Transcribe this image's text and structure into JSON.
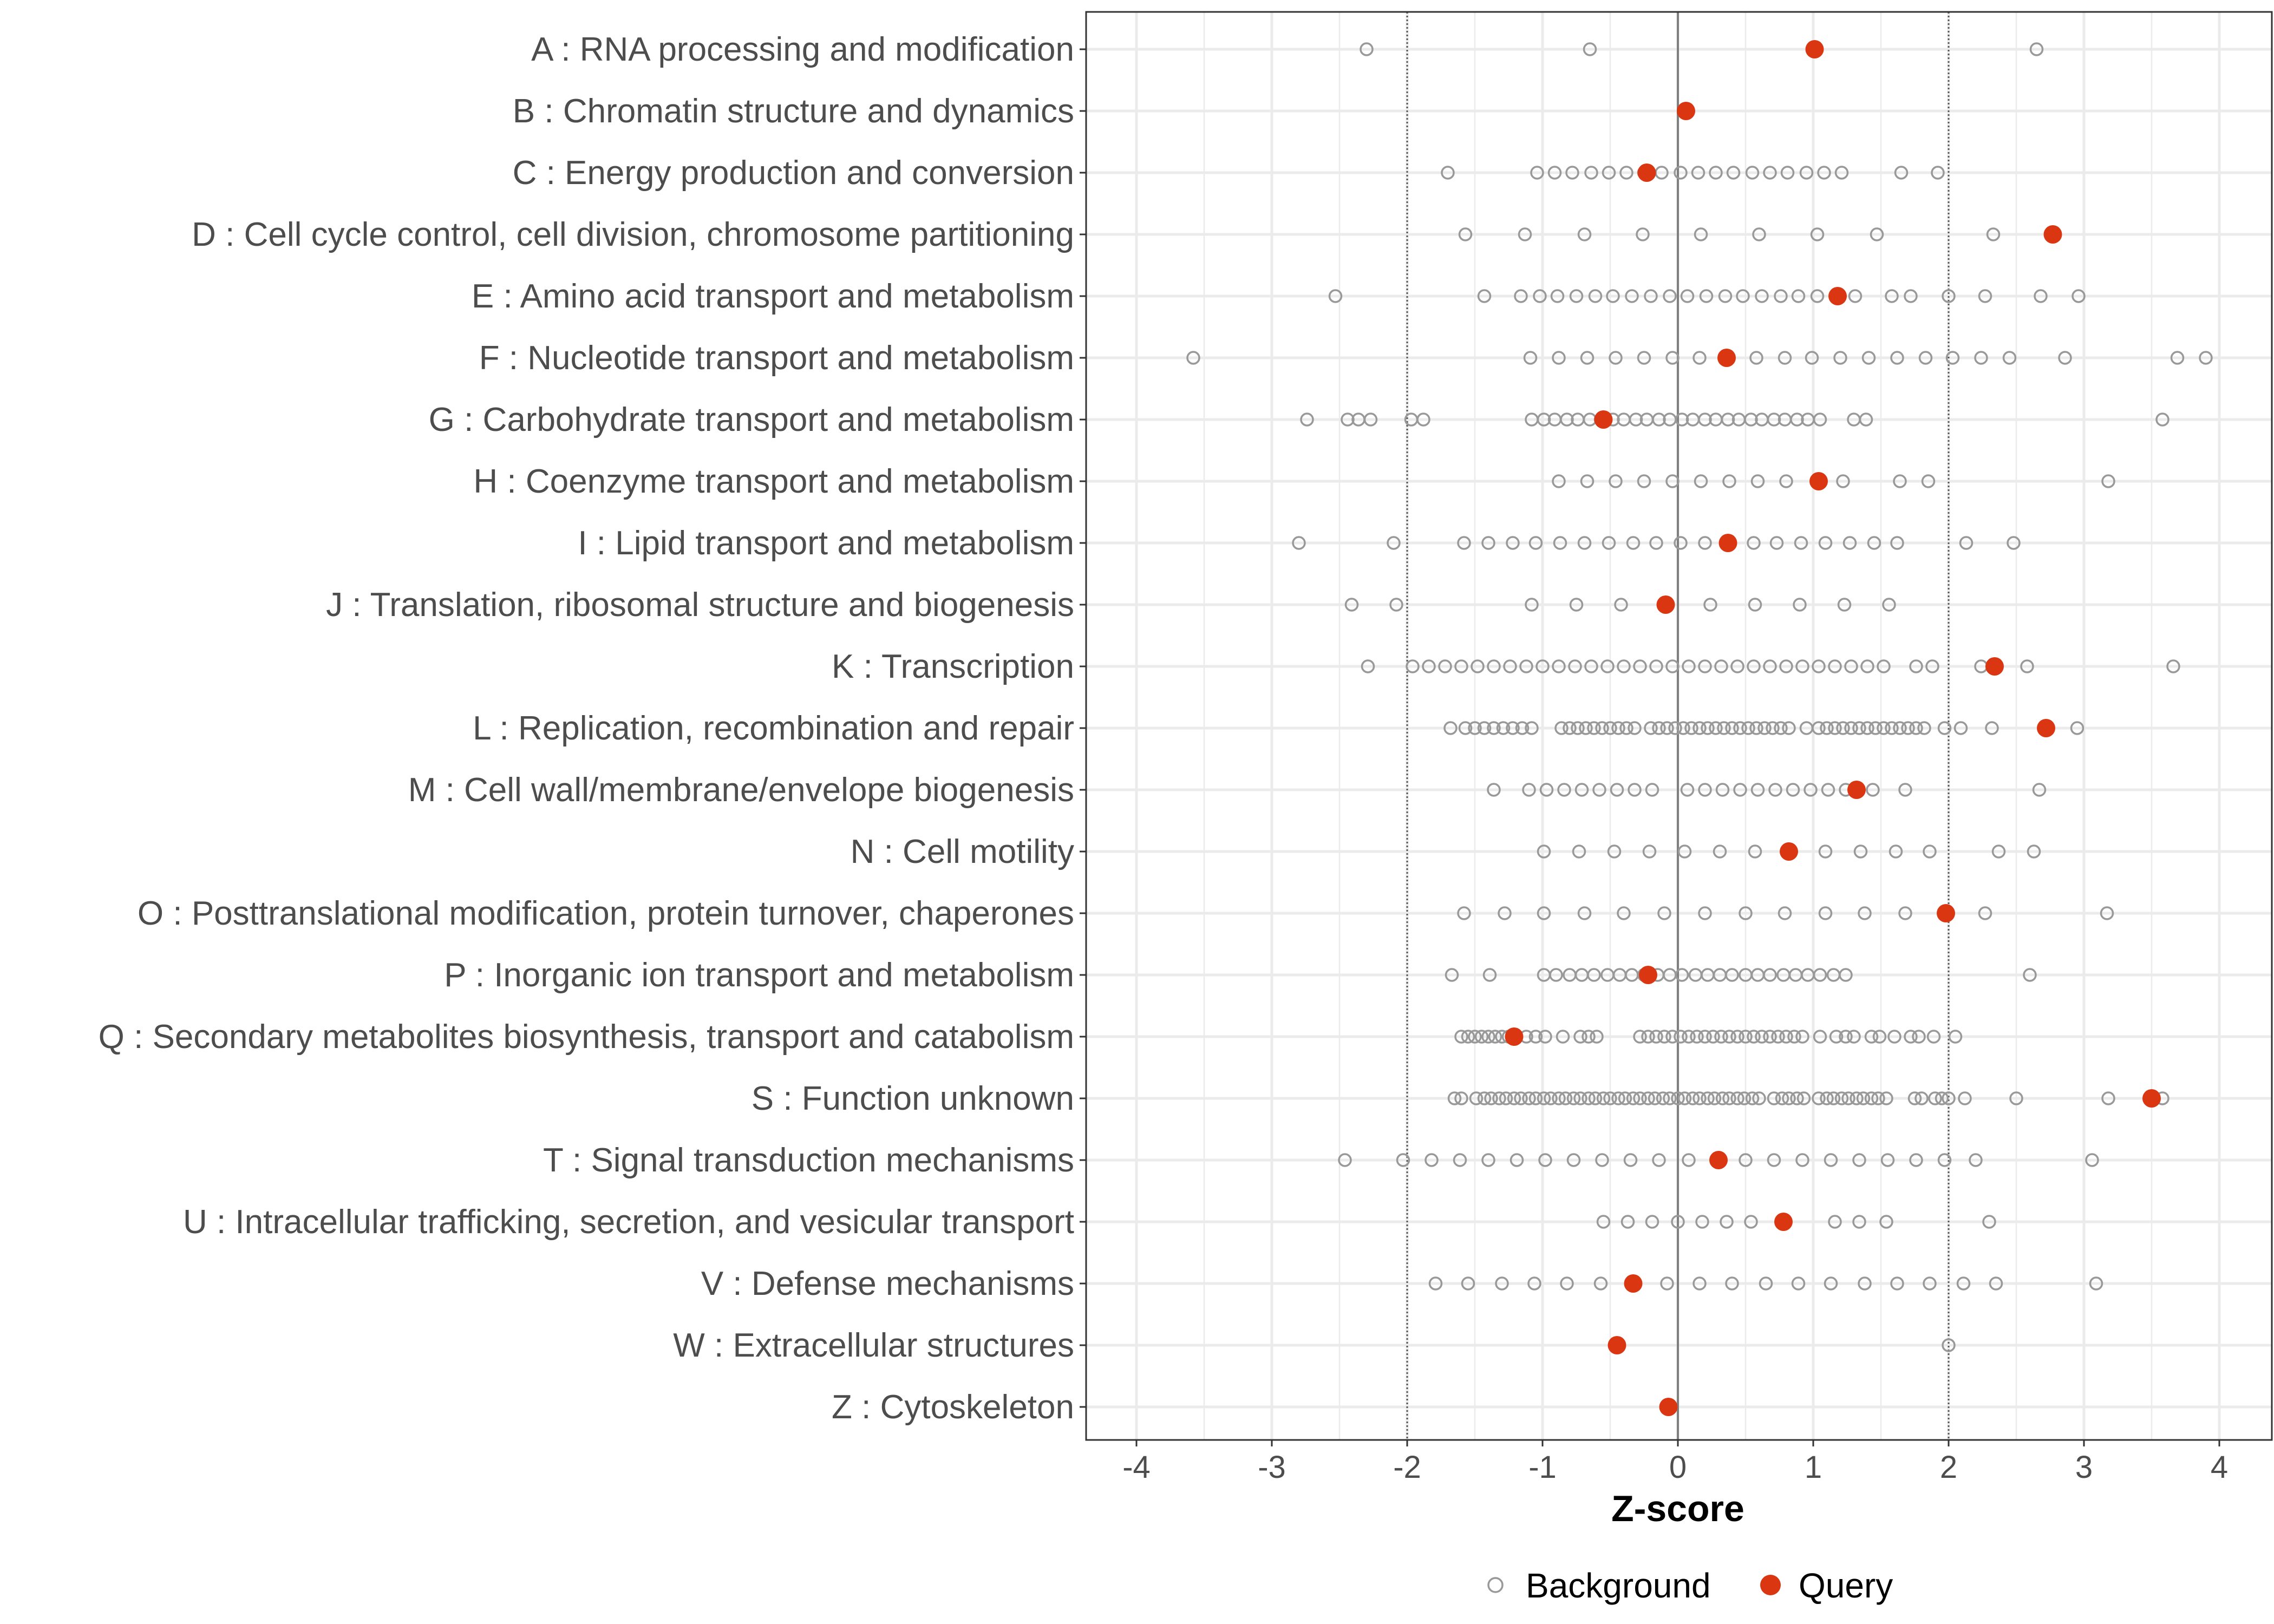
{
  "chart_data": {
    "type": "scatter",
    "title": "",
    "xlabel": "Z-score",
    "ylabel": "",
    "xlim": [
      -4.4,
      4.4
    ],
    "x_ticks": [
      -4,
      -3,
      -2,
      -1,
      0,
      1,
      2,
      3,
      4
    ],
    "x_tick_labels": [
      "-4",
      "-3",
      "-2",
      "-1",
      "0",
      "1",
      "2",
      "3",
      "4"
    ],
    "reference_lines": [
      -2,
      0,
      2
    ],
    "grid": true,
    "legend_position": "bottom",
    "legend": [
      {
        "name": "Background",
        "color": "#999999",
        "marker": "open-circle"
      },
      {
        "name": "Query",
        "color": "#d93611",
        "marker": "filled-circle"
      }
    ],
    "categories": [
      "A : RNA processing and modification",
      "B : Chromatin structure and dynamics",
      "C : Energy production and conversion",
      "D : Cell cycle control, cell division, chromosome partitioning",
      "E : Amino acid transport and metabolism",
      "F : Nucleotide transport and metabolism",
      "G : Carbohydrate transport and metabolism",
      "H : Coenzyme transport and metabolism",
      "I : Lipid transport and metabolism",
      "J : Translation, ribosomal structure and biogenesis",
      "K : Transcription",
      "L : Replication, recombination and repair",
      "M : Cell wall/membrane/envelope biogenesis",
      "N : Cell motility",
      "O : Posttranslational modification, protein turnover, chaperones",
      "P : Inorganic ion transport and metabolism",
      "Q : Secondary metabolites biosynthesis, transport and catabolism",
      "S : Function unknown",
      "T : Signal transduction mechanisms",
      "U : Intracellular trafficking, secretion, and vesicular transport",
      "V : Defense mechanisms",
      "W : Extracellular structures",
      "Z : Cytoskeleton"
    ],
    "series": [
      {
        "name": "Query",
        "values": [
          1.01,
          0.06,
          -0.23,
          2.77,
          1.18,
          0.36,
          -0.55,
          1.04,
          0.37,
          -0.09,
          2.34,
          2.72,
          1.32,
          0.82,
          1.98,
          -0.22,
          -1.21,
          3.5,
          0.3,
          0.78,
          -0.33,
          -0.45,
          -0.07
        ]
      },
      {
        "name": "Background",
        "values": [
          [
            -2.3,
            -0.65,
            2.65
          ],
          [],
          [
            -1.7,
            -1.04,
            -0.91,
            -0.78,
            -0.64,
            -0.51,
            -0.38,
            -0.25,
            -0.12,
            0.02,
            0.15,
            0.28,
            0.41,
            0.55,
            0.68,
            0.81,
            0.95,
            1.08,
            1.21,
            1.65,
            1.92
          ],
          [
            -1.57,
            -1.13,
            -0.69,
            -0.26,
            0.17,
            0.6,
            1.03,
            1.47,
            2.33
          ],
          [
            -2.53,
            -1.43,
            -1.16,
            -1.02,
            -0.89,
            -0.75,
            -0.61,
            -0.48,
            -0.34,
            -0.2,
            -0.06,
            0.07,
            0.21,
            0.35,
            0.48,
            0.62,
            0.76,
            0.89,
            1.03,
            1.31,
            1.58,
            1.72,
            2.0,
            2.27,
            2.68,
            2.96
          ],
          [
            -3.58,
            -1.09,
            -0.88,
            -0.67,
            -0.46,
            -0.25,
            -0.04,
            0.16,
            0.58,
            0.79,
            0.99,
            1.2,
            1.41,
            1.62,
            1.83,
            2.03,
            2.24,
            2.45,
            2.86,
            3.69,
            3.9
          ],
          [
            -2.74,
            -2.44,
            -2.36,
            -2.27,
            -1.97,
            -1.88,
            -1.08,
            -0.99,
            -0.91,
            -0.82,
            -0.74,
            -0.65,
            -0.57,
            -0.48,
            -0.4,
            -0.31,
            -0.23,
            -0.14,
            -0.06,
            0.03,
            0.11,
            0.2,
            0.28,
            0.37,
            0.45,
            0.54,
            0.62,
            0.71,
            0.79,
            0.88,
            0.96,
            1.05,
            1.3,
            1.39,
            3.58
          ],
          [
            -0.88,
            -0.67,
            -0.46,
            -0.25,
            -0.04,
            0.17,
            0.38,
            0.59,
            0.8,
            1.22,
            1.64,
            1.85,
            3.18
          ],
          [
            -2.8,
            -2.1,
            -1.58,
            -1.4,
            -1.22,
            -1.05,
            -0.87,
            -0.69,
            -0.51,
            -0.33,
            -0.16,
            0.02,
            0.2,
            0.56,
            0.73,
            0.91,
            1.09,
            1.27,
            1.45,
            1.62,
            2.13,
            2.48
          ],
          [
            -2.41,
            -2.08,
            -1.08,
            -0.75,
            -0.42,
            0.24,
            0.57,
            0.9,
            1.23,
            1.56
          ],
          [
            -2.29,
            -1.96,
            -1.84,
            -1.72,
            -1.6,
            -1.48,
            -1.36,
            -1.24,
            -1.12,
            -1.0,
            -0.88,
            -0.76,
            -0.64,
            -0.52,
            -0.4,
            -0.28,
            -0.16,
            -0.04,
            0.08,
            0.2,
            0.32,
            0.44,
            0.56,
            0.68,
            0.8,
            0.92,
            1.04,
            1.16,
            1.28,
            1.4,
            1.52,
            1.76,
            1.88,
            2.24,
            2.58,
            3.66
          ],
          [
            -1.68,
            -1.57,
            -1.5,
            -1.43,
            -1.36,
            -1.29,
            -1.22,
            -1.15,
            -1.08,
            -0.86,
            -0.8,
            -0.74,
            -0.68,
            -0.62,
            -0.56,
            -0.5,
            -0.44,
            -0.38,
            -0.32,
            -0.2,
            -0.14,
            -0.08,
            -0.02,
            0.04,
            0.1,
            0.16,
            0.22,
            0.28,
            0.34,
            0.4,
            0.46,
            0.52,
            0.58,
            0.64,
            0.7,
            0.76,
            0.82,
            0.95,
            1.04,
            1.1,
            1.16,
            1.22,
            1.28,
            1.34,
            1.4,
            1.46,
            1.52,
            1.58,
            1.64,
            1.7,
            1.76,
            1.82,
            1.97,
            2.09,
            2.32,
            2.95
          ],
          [
            -1.36,
            -1.1,
            -0.97,
            -0.84,
            -0.71,
            -0.58,
            -0.45,
            -0.32,
            -0.19,
            0.07,
            0.2,
            0.33,
            0.46,
            0.59,
            0.72,
            0.85,
            0.98,
            1.11,
            1.24,
            1.44,
            1.68,
            2.67
          ],
          [
            -0.99,
            -0.73,
            -0.47,
            -0.21,
            0.05,
            0.31,
            0.57,
            1.09,
            1.35,
            1.61,
            1.86,
            2.37,
            2.63
          ],
          [
            -1.58,
            -1.28,
            -0.99,
            -0.69,
            -0.4,
            -0.1,
            0.2,
            0.5,
            0.79,
            1.09,
            1.38,
            1.68,
            2.27,
            3.17
          ],
          [
            -1.67,
            -1.39,
            -0.99,
            -0.9,
            -0.8,
            -0.71,
            -0.62,
            -0.52,
            -0.43,
            -0.34,
            -0.25,
            -0.15,
            -0.06,
            0.03,
            0.13,
            0.22,
            0.31,
            0.4,
            0.5,
            0.59,
            0.68,
            0.78,
            0.87,
            0.96,
            1.05,
            1.15,
            1.24,
            2.6
          ],
          [
            -1.6,
            -1.55,
            -1.5,
            -1.45,
            -1.4,
            -1.35,
            -1.3,
            -1.25,
            -1.12,
            -1.05,
            -0.98,
            -0.85,
            -0.72,
            -0.66,
            -0.6,
            -0.28,
            -0.22,
            -0.16,
            -0.1,
            -0.04,
            0.02,
            0.08,
            0.14,
            0.2,
            0.26,
            0.32,
            0.38,
            0.44,
            0.5,
            0.56,
            0.62,
            0.68,
            0.74,
            0.8,
            0.86,
            0.92,
            1.05,
            1.17,
            1.24,
            1.3,
            1.43,
            1.49,
            1.6,
            1.72,
            1.78,
            1.89,
            2.05
          ],
          [
            -1.65,
            -1.6,
            -1.49,
            -1.43,
            -1.38,
            -1.32,
            -1.27,
            -1.21,
            -1.16,
            -1.1,
            -1.05,
            -0.99,
            -0.94,
            -0.88,
            -0.83,
            -0.77,
            -0.72,
            -0.66,
            -0.61,
            -0.55,
            -0.5,
            -0.44,
            -0.39,
            -0.33,
            -0.28,
            -0.22,
            -0.17,
            -0.11,
            -0.06,
            0.0,
            0.05,
            0.11,
            0.16,
            0.22,
            0.27,
            0.33,
            0.38,
            0.44,
            0.49,
            0.55,
            0.6,
            0.71,
            0.77,
            0.82,
            0.88,
            0.93,
            1.04,
            1.1,
            1.15,
            1.21,
            1.26,
            1.32,
            1.37,
            1.43,
            1.48,
            1.54,
            1.75,
            1.8,
            1.9,
            1.95,
            2.0,
            2.12,
            2.5,
            3.18,
            3.58
          ],
          [
            -2.46,
            -2.03,
            -1.82,
            -1.61,
            -1.4,
            -1.19,
            -0.98,
            -0.77,
            -0.56,
            -0.35,
            -0.14,
            0.08,
            0.5,
            0.71,
            0.92,
            1.13,
            1.34,
            1.55,
            1.76,
            1.97,
            2.2,
            3.06
          ],
          [
            -0.55,
            -0.37,
            -0.19,
            0.0,
            0.18,
            0.36,
            0.54,
            1.16,
            1.34,
            1.54,
            2.3
          ],
          [
            -1.79,
            -1.55,
            -1.3,
            -1.06,
            -0.82,
            -0.57,
            -0.08,
            0.16,
            0.4,
            0.65,
            0.89,
            1.13,
            1.38,
            1.62,
            1.86,
            2.11,
            2.35,
            3.09
          ],
          [
            2.0
          ],
          []
        ]
      }
    ]
  }
}
